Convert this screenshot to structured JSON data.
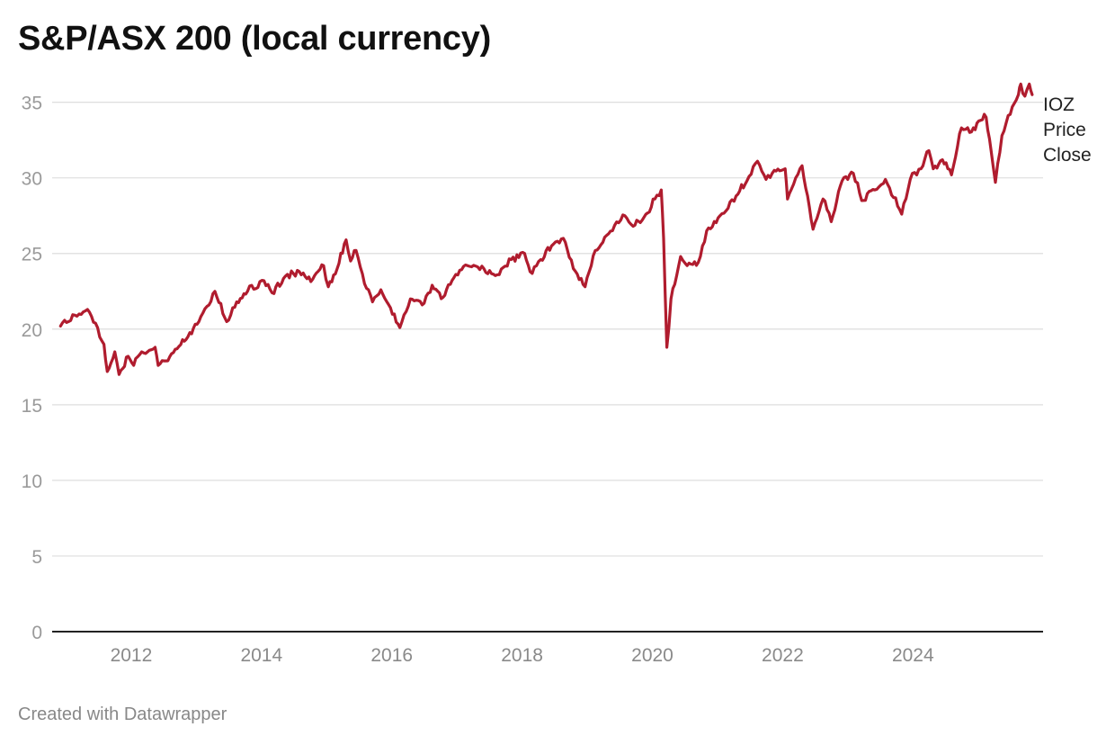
{
  "page": {
    "title": "S&P/ASX 200 (local currency)",
    "credit": "Created with Datawrapper"
  },
  "chart_data": {
    "type": "line",
    "title": "S&P/ASX 200 (local currency)",
    "xlabel": "",
    "ylabel": "",
    "ylim": [
      0,
      37
    ],
    "xlim": [
      "2010-10-15",
      "2025-12-31"
    ],
    "y_ticks": [
      0,
      5,
      10,
      15,
      20,
      25,
      30,
      35
    ],
    "x_ticks": [
      "2012",
      "2014",
      "2016",
      "2018",
      "2020",
      "2022",
      "2024"
    ],
    "grid": true,
    "legend": "direct label at right end of line",
    "series": [
      {
        "name": "IOZ Price Close",
        "name_lines": [
          "IOZ",
          "Price",
          "Close"
        ],
        "color": "#b01c2e",
        "points": [
          [
            "2010-12-01",
            20.2
          ],
          [
            "2011-01-15",
            20.5
          ],
          [
            "2011-03-15",
            21.0
          ],
          [
            "2011-05-01",
            21.3
          ],
          [
            "2011-06-15",
            20.4
          ],
          [
            "2011-08-01",
            19.0
          ],
          [
            "2011-08-20",
            17.2
          ],
          [
            "2011-10-01",
            18.5
          ],
          [
            "2011-10-25",
            17.0
          ],
          [
            "2011-12-15",
            18.2
          ],
          [
            "2012-01-15",
            17.6
          ],
          [
            "2012-03-01",
            18.5
          ],
          [
            "2012-05-15",
            18.8
          ],
          [
            "2012-06-01",
            17.6
          ],
          [
            "2012-07-15",
            17.9
          ],
          [
            "2012-09-15",
            18.7
          ],
          [
            "2012-11-15",
            19.5
          ],
          [
            "2013-01-15",
            20.5
          ],
          [
            "2013-03-01",
            21.5
          ],
          [
            "2013-04-15",
            22.5
          ],
          [
            "2013-06-20",
            20.5
          ],
          [
            "2013-08-15",
            21.8
          ],
          [
            "2013-10-15",
            22.5
          ],
          [
            "2014-01-15",
            23.2
          ],
          [
            "2014-03-01",
            22.4
          ],
          [
            "2014-05-15",
            23.5
          ],
          [
            "2014-08-01",
            23.8
          ],
          [
            "2014-10-15",
            23.3
          ],
          [
            "2014-12-15",
            24.2
          ],
          [
            "2015-01-10",
            22.8
          ],
          [
            "2015-03-01",
            24.0
          ],
          [
            "2015-04-20",
            25.9
          ],
          [
            "2015-05-15",
            24.5
          ],
          [
            "2015-06-15",
            25.2
          ],
          [
            "2015-08-01",
            23.0
          ],
          [
            "2015-09-15",
            21.8
          ],
          [
            "2015-11-01",
            22.6
          ],
          [
            "2016-01-15",
            21.0
          ],
          [
            "2016-02-15",
            20.1
          ],
          [
            "2016-04-15",
            22.0
          ],
          [
            "2016-06-20",
            21.6
          ],
          [
            "2016-08-15",
            22.9
          ],
          [
            "2016-10-15",
            22.1
          ],
          [
            "2016-12-15",
            23.4
          ],
          [
            "2017-03-01",
            24.2
          ],
          [
            "2017-06-01",
            24.0
          ],
          [
            "2017-08-15",
            23.6
          ],
          [
            "2017-11-01",
            24.6
          ],
          [
            "2018-01-15",
            25.0
          ],
          [
            "2018-02-15",
            23.8
          ],
          [
            "2018-04-15",
            24.6
          ],
          [
            "2018-06-15",
            25.5
          ],
          [
            "2018-08-20",
            26.0
          ],
          [
            "2018-10-15",
            24.0
          ],
          [
            "2018-12-20",
            22.8
          ],
          [
            "2019-02-15",
            25.2
          ],
          [
            "2019-04-30",
            26.3
          ],
          [
            "2019-07-31",
            27.5
          ],
          [
            "2019-09-15",
            26.8
          ],
          [
            "2019-11-15",
            27.4
          ],
          [
            "2020-01-15",
            28.6
          ],
          [
            "2020-02-20",
            29.2
          ],
          [
            "2020-03-05",
            26.0
          ],
          [
            "2020-03-23",
            18.8
          ],
          [
            "2020-04-15",
            22.0
          ],
          [
            "2020-06-08",
            24.8
          ],
          [
            "2020-07-15",
            24.2
          ],
          [
            "2020-09-15",
            24.4
          ],
          [
            "2020-11-01",
            26.5
          ],
          [
            "2021-01-15",
            27.5
          ],
          [
            "2021-04-15",
            28.8
          ],
          [
            "2021-06-15",
            29.8
          ],
          [
            "2021-08-13",
            31.1
          ],
          [
            "2021-09-30",
            29.9
          ],
          [
            "2021-11-15",
            30.5
          ],
          [
            "2022-01-15",
            30.6
          ],
          [
            "2022-01-28",
            28.6
          ],
          [
            "2022-03-15",
            30.0
          ],
          [
            "2022-04-20",
            30.8
          ],
          [
            "2022-06-20",
            26.6
          ],
          [
            "2022-08-15",
            28.6
          ],
          [
            "2022-09-30",
            27.1
          ],
          [
            "2022-11-30",
            29.8
          ],
          [
            "2023-02-01",
            30.3
          ],
          [
            "2023-03-20",
            28.5
          ],
          [
            "2023-06-01",
            29.2
          ],
          [
            "2023-07-31",
            29.9
          ],
          [
            "2023-10-30",
            27.6
          ],
          [
            "2023-12-29",
            30.3
          ],
          [
            "2024-02-15",
            30.6
          ],
          [
            "2024-03-31",
            31.8
          ],
          [
            "2024-04-25",
            30.6
          ],
          [
            "2024-06-15",
            31.2
          ],
          [
            "2024-08-05",
            30.2
          ],
          [
            "2024-09-30",
            33.3
          ],
          [
            "2024-11-15",
            33.0
          ],
          [
            "2025-01-15",
            33.8
          ],
          [
            "2025-02-15",
            34.0
          ],
          [
            "2025-03-15",
            31.8
          ],
          [
            "2025-04-08",
            29.7
          ],
          [
            "2025-05-15",
            32.8
          ],
          [
            "2025-06-30",
            34.2
          ],
          [
            "2025-08-15",
            35.5
          ],
          [
            "2025-08-28",
            36.2
          ],
          [
            "2025-09-20",
            35.4
          ],
          [
            "2025-10-15",
            36.2
          ],
          [
            "2025-10-31",
            35.5
          ]
        ]
      }
    ]
  }
}
